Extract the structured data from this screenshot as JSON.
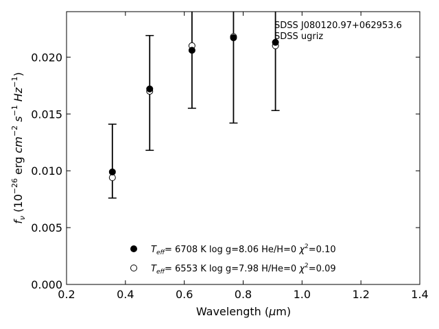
{
  "chart_data": {
    "type": "scatter",
    "xlabel_prefix": "Wavelength (",
    "xlabel_mu": "μ",
    "xlabel_suffix": "m)",
    "ylabel": "f_ν (10^−26 erg cm^−2 s^−1 Hz^−1)",
    "xlim": [
      0.2,
      1.4
    ],
    "ylim": [
      0.0,
      0.024
    ],
    "xticks": [
      0.2,
      0.4,
      0.6,
      0.8,
      1.0,
      1.2,
      1.4
    ],
    "xtick_labels": [
      "0.2",
      "0.4",
      "0.6",
      "0.8",
      "1.0",
      "1.2",
      "1.4"
    ],
    "yticks": [
      0.0,
      0.005,
      0.01,
      0.015,
      0.02
    ],
    "ytick_labels": [
      "0.000",
      "0.005",
      "0.010",
      "0.015",
      "0.020"
    ],
    "annotation": [
      "SDSS J080120.97+062953.6",
      "SDSS ugriz"
    ],
    "observed": [
      {
        "x": 0.3557,
        "y": 0.0099,
        "err_low": 0.0076,
        "err_high": 0.0141
      },
      {
        "x": 0.4825,
        "y": 0.0171,
        "err_low": 0.0118,
        "err_high": 0.0219
      },
      {
        "x": 0.6261,
        "y": 0.0206,
        "err_low": 0.0155,
        "err_high": 0.0245
      },
      {
        "x": 0.7672,
        "y": 0.0217,
        "err_low": 0.0142,
        "err_high": 0.0245
      },
      {
        "x": 0.9097,
        "y": 0.0212,
        "err_low": 0.0153,
        "err_high": 0.0245
      }
    ],
    "series": [
      {
        "marker": "filled-circle",
        "legend": "T_eff=  6708 K  log g=8.06  He/H=0  χ²=0.10",
        "x": [
          0.3557,
          0.4825,
          0.6261,
          0.7672,
          0.9097
        ],
        "values": [
          0.0099,
          0.0172,
          0.0206,
          0.0217,
          0.0213
        ]
      },
      {
        "marker": "open-circle",
        "legend": "T_eff=  6553 K  log g=7.98  H/He=0  χ²=0.09",
        "x": [
          0.3557,
          0.4825,
          0.6261,
          0.7672,
          0.9097
        ],
        "values": [
          0.0094,
          0.017,
          0.021,
          0.0218,
          0.021
        ]
      }
    ],
    "legend_entries": [
      {
        "teff": "6708 K",
        "logg": "log g=8.06",
        "comp": "He/H=0",
        "chi2": "=0.10"
      },
      {
        "teff": "6553 K",
        "logg": "log g=7.98",
        "comp": "H/He=0",
        "chi2": "=0.09"
      }
    ],
    "legend_position": "lower-center",
    "grid": false
  }
}
